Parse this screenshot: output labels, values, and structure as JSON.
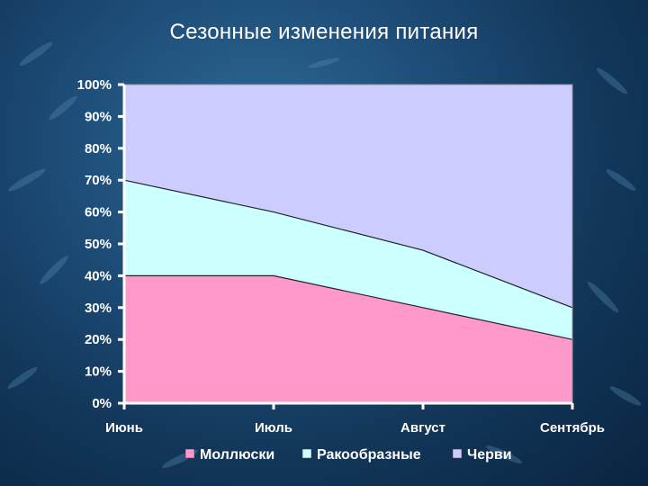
{
  "slide": {
    "title": "Сезонные изменения питания"
  },
  "colors": {
    "molluscs": "#ff99cc",
    "crustaceans": "#ccffff",
    "worms": "#ccccff",
    "axis": "#ffffff",
    "background": "#1d4d78"
  },
  "chart_data": {
    "type": "area",
    "stacked": true,
    "percent": true,
    "categories": [
      "Июнь",
      "Июль",
      "Август",
      "Сентябрь"
    ],
    "series": [
      {
        "name": "Моллюски",
        "values": [
          40,
          40,
          30,
          20
        ],
        "color": "#ff99cc"
      },
      {
        "name": "Ракообразные",
        "values": [
          30,
          20,
          18,
          10
        ],
        "color": "#ccffff"
      },
      {
        "name": "Черви",
        "values": [
          30,
          40,
          52,
          70
        ],
        "color": "#ccccff"
      }
    ],
    "ylim": [
      0,
      100
    ],
    "yticks": [
      "0%",
      "10%",
      "20%",
      "30%",
      "40%",
      "50%",
      "60%",
      "70%",
      "80%",
      "90%",
      "100%"
    ],
    "grid": false,
    "legend_position": "bottom"
  }
}
